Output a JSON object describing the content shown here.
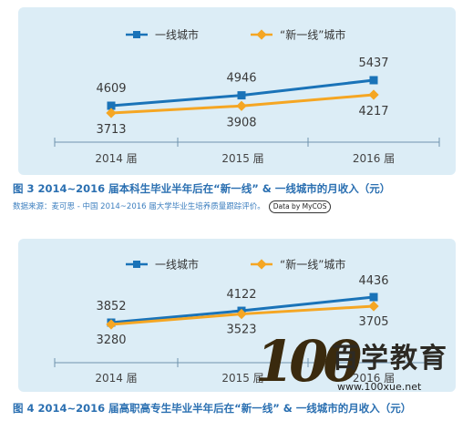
{
  "chart_data": [
    {
      "type": "line",
      "categories": [
        "2014 届",
        "2015 届",
        "2016 届"
      ],
      "series": [
        {
          "name": "一线城市",
          "values": [
            4609,
            4946,
            5437
          ],
          "color": "#1a73b8",
          "marker": "square"
        },
        {
          "name": "“新一线”城市",
          "values": [
            3713,
            3908,
            4217
          ],
          "color": "#f5a623",
          "marker": "diamond"
        }
      ],
      "title": "图 3  2014~2016 届本科生毕业半年后在“新一线” & 一线城市的月收入（元）",
      "source": "数据来源：麦可思 - 中国 2014~2016 届大学毕业生培养质量跟踪评价。",
      "source_badge": "Data by MyCOS",
      "legend": "top-center",
      "grid": false
    },
    {
      "type": "line",
      "categories": [
        "2014 届",
        "2015 届",
        "2016 届"
      ],
      "series": [
        {
          "name": "一线城市",
          "values": [
            3852,
            4122,
            4436
          ],
          "color": "#1a73b8",
          "marker": "square"
        },
        {
          "name": "“新一线”城市",
          "values": [
            3280,
            3523,
            3705
          ],
          "color": "#f5a623",
          "marker": "diamond"
        }
      ],
      "title": "图 4  2014~2016 届高职高专生毕业半年后在“新一线” & 一线城市的月收入（元）",
      "legend": "top-center",
      "grid": false
    }
  ],
  "watermark": {
    "digits": "100",
    "name": "百学教育",
    "url": "www.100xue.net"
  }
}
